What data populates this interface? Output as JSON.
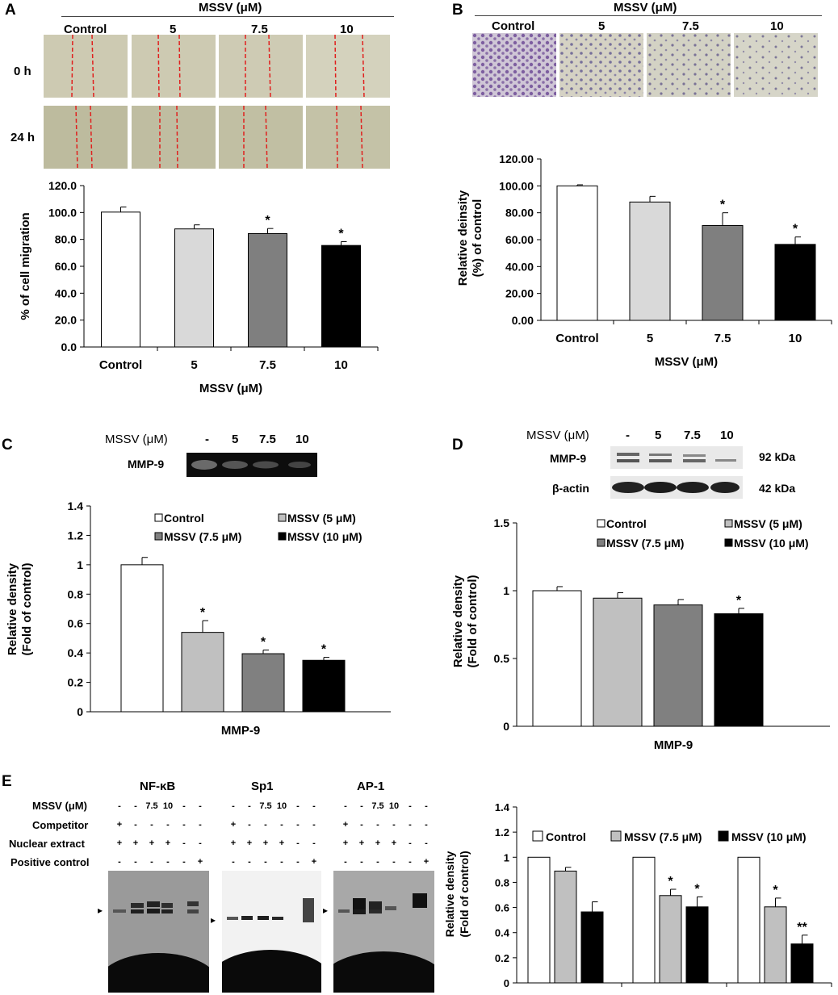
{
  "panels": {
    "a": {
      "label": "A",
      "treatment_header": "MSSV (μM)",
      "columns": [
        "Control",
        "5",
        "7.5",
        "10"
      ],
      "rows": [
        "0 h",
        "24 h"
      ]
    },
    "b": {
      "label": "B",
      "treatment_header": "MSSV (μM)",
      "columns": [
        "Control",
        "5",
        "7.5",
        "10"
      ]
    },
    "c": {
      "label": "C",
      "blot_header": "MSSV (μM)",
      "lanes": [
        "-",
        "5",
        "7.5",
        "10"
      ],
      "blot_row": "MMP-9"
    },
    "d": {
      "label": "D",
      "blot_header": "MSSV (μM)",
      "lanes": [
        "-",
        "5",
        "7.5",
        "10"
      ],
      "rows": [
        "MMP-9",
        "β-actin"
      ],
      "sizes": [
        "92 kDa",
        "42 kDa"
      ]
    },
    "e": {
      "label": "E",
      "probes": [
        "NF-κB",
        "Sp1",
        "AP-1"
      ],
      "row_labels": [
        "MSSV (μM)",
        "Competitor",
        "Nuclear extract",
        "Positive control"
      ],
      "lane_symbols": {
        "mssv": [
          "-",
          "-",
          "7.5",
          "10",
          "-",
          "-"
        ],
        "competitor": [
          "+",
          "-",
          "-",
          "-",
          "-",
          "-"
        ],
        "nuclear_extract": [
          "+",
          "+",
          "+",
          "+",
          "-",
          "-"
        ],
        "positive_control": [
          "-",
          "-",
          "-",
          "-",
          "-",
          "+"
        ]
      },
      "band_marker": "▸"
    }
  },
  "chart_data": [
    {
      "id": "A",
      "type": "bar",
      "categories": [
        "Control",
        "5",
        "7.5",
        "10"
      ],
      "values": [
        100.3,
        87.8,
        84.3,
        75.5
      ],
      "errors": [
        3.8,
        3.0,
        3.8,
        2.8
      ],
      "significance": [
        "",
        "",
        "*",
        "*"
      ],
      "colors": [
        "#ffffff",
        "#d9d9d9",
        "#7f7f7f",
        "#000000"
      ],
      "xlabel": "MSSV (μM)",
      "ylabel": "% of cell migration",
      "ylim": [
        0,
        120
      ],
      "yticks": [
        "0.0",
        "20.0",
        "40.0",
        "60.0",
        "80.0",
        "100.0",
        "120.0"
      ]
    },
    {
      "id": "B",
      "type": "bar",
      "categories": [
        "Control",
        "5",
        "7.5",
        "10"
      ],
      "values": [
        100.0,
        88.0,
        70.5,
        56.5
      ],
      "errors": [
        0.8,
        4.2,
        9.5,
        5.5
      ],
      "significance": [
        "",
        "",
        "*",
        "*"
      ],
      "colors": [
        "#ffffff",
        "#d9d9d9",
        "#7f7f7f",
        "#000000"
      ],
      "xlabel": "MSSV (μM)",
      "ylabel": "Relative deinsity (%) of control",
      "ylim": [
        0,
        120
      ],
      "yticks": [
        "0.00",
        "20.00",
        "40.00",
        "60.00",
        "80.00",
        "100.00",
        "120.00"
      ]
    },
    {
      "id": "C",
      "type": "bar",
      "categories": [
        "MMP-9"
      ],
      "series": [
        {
          "name": "Control",
          "values": [
            1.0
          ],
          "errors": [
            0.05
          ],
          "significance": [
            ""
          ],
          "color": "#ffffff"
        },
        {
          "name": "MSSV (5 μM)",
          "values": [
            0.54
          ],
          "errors": [
            0.08
          ],
          "significance": [
            "*"
          ],
          "color": "#c0c0c0"
        },
        {
          "name": "MSSV (7.5 μM)",
          "values": [
            0.395
          ],
          "errors": [
            0.025
          ],
          "significance": [
            "*"
          ],
          "color": "#808080"
        },
        {
          "name": "MSSV (10 μM)",
          "values": [
            0.35
          ],
          "errors": [
            0.02
          ],
          "significance": [
            "*"
          ],
          "color": "#000000"
        }
      ],
      "ylabel": "Relative density (Fold of control)",
      "ylim": [
        0,
        1.4
      ],
      "yticks": [
        "0",
        "0.2",
        "0.4",
        "0.6",
        "0.8",
        "1",
        "1.2",
        "1.4"
      ]
    },
    {
      "id": "D",
      "type": "bar",
      "categories": [
        "MMP-9"
      ],
      "series": [
        {
          "name": "Control",
          "values": [
            1.0
          ],
          "errors": [
            0.03
          ],
          "significance": [
            ""
          ],
          "color": "#ffffff"
        },
        {
          "name": "MSSV (5 μM)",
          "values": [
            0.945
          ],
          "errors": [
            0.04
          ],
          "significance": [
            ""
          ],
          "color": "#c0c0c0"
        },
        {
          "name": "MSSV (7.5 μM)",
          "values": [
            0.895
          ],
          "errors": [
            0.04
          ],
          "significance": [
            ""
          ],
          "color": "#808080"
        },
        {
          "name": "MSSV (10 μM)",
          "values": [
            0.83
          ],
          "errors": [
            0.04
          ],
          "significance": [
            "*"
          ],
          "color": "#000000"
        }
      ],
      "ylabel": "Relative density (Fold of control)",
      "ylim": [
        0,
        1.5
      ],
      "yticks": [
        "0",
        "0.5",
        "1",
        "1.5"
      ]
    },
    {
      "id": "E",
      "type": "bar",
      "categories": [
        "NF-κB",
        "Sp1",
        "AP-1"
      ],
      "series": [
        {
          "name": "Control",
          "values": [
            1.0,
            1.0,
            1.0
          ],
          "errors": [
            0,
            0,
            0
          ],
          "significance": [
            "",
            "",
            ""
          ],
          "color": "#ffffff"
        },
        {
          "name": "MSSV (7.5 μM)",
          "values": [
            0.89,
            0.695,
            0.605
          ],
          "errors": [
            0.03,
            0.05,
            0.07
          ],
          "significance": [
            "",
            "*",
            "*"
          ],
          "color": "#c0c0c0"
        },
        {
          "name": "MSSV (10 μM)",
          "values": [
            0.565,
            0.605,
            0.31
          ],
          "errors": [
            0.08,
            0.08,
            0.07
          ],
          "significance": [
            "",
            "*",
            "**"
          ],
          "color": "#000000"
        }
      ],
      "ylabel": "Relative density (Fold of control)",
      "ylim": [
        0,
        1.4
      ],
      "yticks": [
        "0",
        "0.2",
        "0.4",
        "0.6",
        "0.8",
        "1",
        "1.2",
        "1.4"
      ]
    }
  ]
}
